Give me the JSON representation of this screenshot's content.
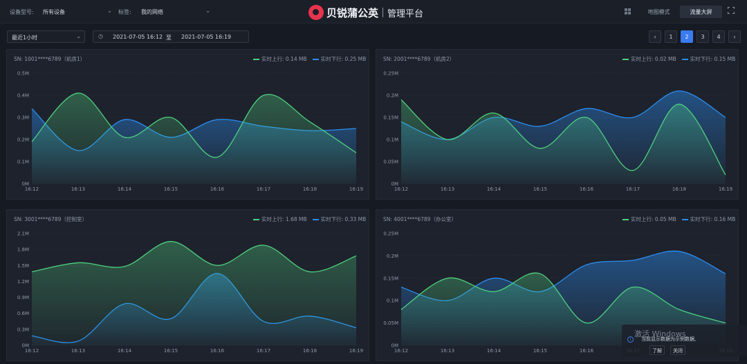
{
  "header": {
    "device_type_label": "设备型号:",
    "device_type_value": "所有设备",
    "tag_label": "标签:",
    "tag_value": "我的网络",
    "brand_name": "贝锐蒲公英",
    "brand_sub": "管理平台",
    "modes": [
      "地图模式",
      "流量大屏"
    ],
    "active_mode": "流量大屏"
  },
  "filters": {
    "range_value": "最近1小时",
    "start_time": "2021-07-05 16:12",
    "to_label": "至",
    "end_time": "2021-07-05 16:19"
  },
  "pagination": {
    "prev": "‹",
    "next": "›",
    "pages": [
      "1",
      "2",
      "3",
      "4"
    ],
    "current": "2"
  },
  "colors": {
    "up": "#4fd17f",
    "down": "#2a8ef0"
  },
  "toast": {
    "title": "激活 Windows",
    "body": "当前显示数据为示例数据,",
    "actions": [
      "了解",
      "关闭"
    ]
  },
  "chart_data": [
    {
      "type": "area",
      "title": "SN: 1001****6789（机房1）",
      "x": [
        "16:12",
        "16:13",
        "16:14",
        "16:15",
        "16:16",
        "16:17",
        "16:18",
        "16:19"
      ],
      "y_ticks": [
        "0M",
        "0.1M",
        "0.2M",
        "0.3M",
        "0.4M",
        "0.5M"
      ],
      "ylim": [
        0,
        0.5
      ],
      "series": [
        {
          "name": "实时上行: 0.14 MB",
          "values": [
            0.19,
            0.41,
            0.21,
            0.3,
            0.12,
            0.4,
            0.28,
            0.14
          ]
        },
        {
          "name": "实时下行: 0.25 MB",
          "values": [
            0.34,
            0.15,
            0.29,
            0.21,
            0.29,
            0.26,
            0.24,
            0.25
          ]
        }
      ]
    },
    {
      "type": "area",
      "title": "SN: 2001****6789（机房2）",
      "x": [
        "16:12",
        "16:13",
        "16:14",
        "16:15",
        "16:16",
        "16:17",
        "16:18",
        "16:19"
      ],
      "y_ticks": [
        "0M",
        "0.05M",
        "0.1M",
        "0.15M",
        "0.2M",
        "0.25M"
      ],
      "ylim": [
        0,
        0.25
      ],
      "series": [
        {
          "name": "实时上行: 0.02 MB",
          "values": [
            0.19,
            0.1,
            0.16,
            0.08,
            0.15,
            0.03,
            0.18,
            0.02
          ]
        },
        {
          "name": "实时下行: 0.15 MB",
          "values": [
            0.14,
            0.1,
            0.15,
            0.13,
            0.17,
            0.15,
            0.21,
            0.15
          ]
        }
      ]
    },
    {
      "type": "area",
      "title": "SN: 3001****6789（控制室）",
      "x": [
        "16:12",
        "16:13",
        "16:14",
        "16:15",
        "16:16",
        "16:17",
        "16:18",
        "16:19"
      ],
      "y_ticks": [
        "0M",
        "0.3M",
        "0.6M",
        "0.9M",
        "1.2M",
        "1.5M",
        "1.8M",
        "2.1M"
      ],
      "ylim": [
        0,
        2.1
      ],
      "series": [
        {
          "name": "实时上行: 1.68 MB",
          "values": [
            1.38,
            1.55,
            1.48,
            1.95,
            1.5,
            1.88,
            1.38,
            1.68
          ]
        },
        {
          "name": "实时下行: 0.33 MB",
          "values": [
            0.18,
            0.08,
            0.78,
            0.5,
            1.35,
            0.45,
            0.55,
            0.33
          ]
        }
      ]
    },
    {
      "type": "area",
      "title": "SN: 4001****6789（办公室）",
      "x": [
        "16:12",
        "16:13",
        "16:14",
        "16:15",
        "16:16",
        "16:17",
        "16:18",
        "16:19"
      ],
      "y_ticks": [
        "0M",
        "0.05M",
        "0.1M",
        "0.15M",
        "0.2M",
        "0.25M"
      ],
      "ylim": [
        0,
        0.25
      ],
      "series": [
        {
          "name": "实时上行: 0.05 MB",
          "values": [
            0.08,
            0.15,
            0.12,
            0.16,
            0.05,
            0.13,
            0.08,
            0.05
          ]
        },
        {
          "name": "实时下行: 0.16 MB",
          "values": [
            0.13,
            0.1,
            0.15,
            0.12,
            0.18,
            0.19,
            0.21,
            0.16
          ]
        }
      ]
    }
  ]
}
